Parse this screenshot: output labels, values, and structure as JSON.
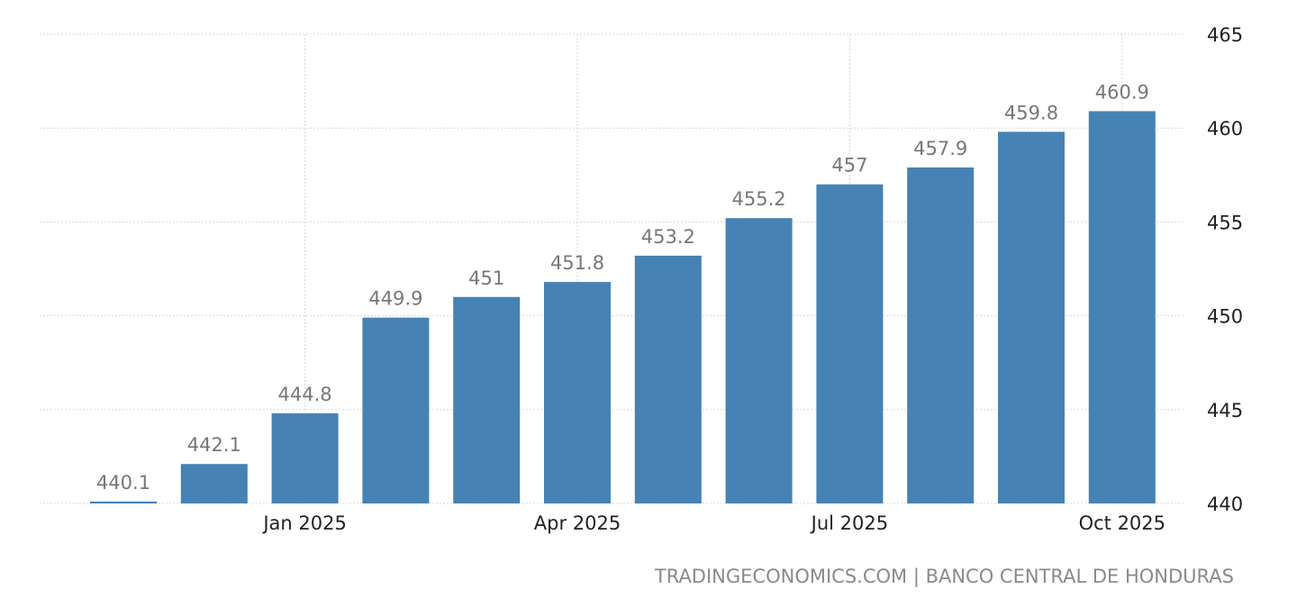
{
  "chart_data": {
    "type": "bar",
    "title": "",
    "xlabel": "",
    "ylabel": "",
    "categories": [
      "Nov 2024",
      "Dec 2024",
      "Jan 2025",
      "Feb 2025",
      "Mar 2025",
      "Apr 2025",
      "May 2025",
      "Jun 2025",
      "Jul 2025",
      "Aug 2025",
      "Sep 2025",
      "Oct 2025"
    ],
    "values": [
      440.1,
      442.1,
      444.8,
      449.9,
      451,
      451.8,
      453.2,
      455.2,
      457,
      457.9,
      459.8,
      460.9
    ],
    "data_labels": [
      "440.1",
      "442.1",
      "444.8",
      "449.9",
      "451",
      "451.8",
      "453.2",
      "455.2",
      "457",
      "457.9",
      "459.8",
      "460.9"
    ],
    "ylim": [
      440,
      465
    ],
    "y_ticks": [
      440,
      445,
      450,
      455,
      460,
      465
    ],
    "y_axis_position": "right",
    "x_tick_labels": [
      {
        "label": "Jan 2025",
        "category": "Jan 2025"
      },
      {
        "label": "Apr 2025",
        "category": "Apr 2025"
      },
      {
        "label": "Jul 2025",
        "category": "Jul 2025"
      },
      {
        "label": "Oct 2025",
        "category": "Oct 2025"
      }
    ],
    "grid": true,
    "bar_color": "#4682b4",
    "label_color": "#777777",
    "tick_color": "#222222",
    "grid_color": "#d7d7d7"
  },
  "source": {
    "text": "TRADINGECONOMICS.COM | BANCO CENTRAL DE HONDURAS"
  }
}
